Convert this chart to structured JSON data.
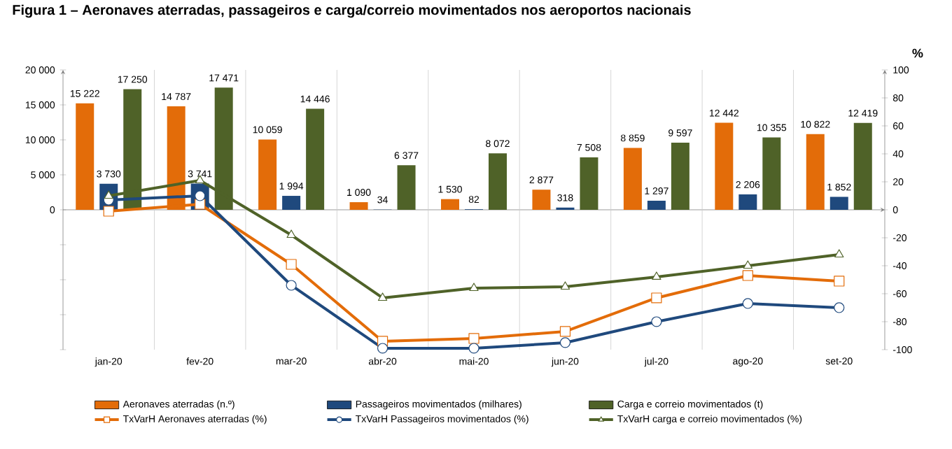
{
  "chart_data": {
    "type": "bar",
    "title": "Figura 1 – Aeronaves aterradas, passageiros e carga/correio movimentados nos aeroportos nacionais",
    "y2label": "%",
    "categories": [
      "jan-20",
      "fev-20",
      "mar-20",
      "abr-20",
      "mai-20",
      "jun-20",
      "jul-20",
      "ago-20",
      "set-20"
    ],
    "series": [
      {
        "name": "Aeronaves aterradas (n.º)",
        "color": "#e36c09",
        "data_labels": true,
        "values": [
          15222,
          14787,
          10059,
          1090,
          1530,
          2877,
          8859,
          12442,
          10822
        ]
      },
      {
        "name": "Passageiros movimentados (milhares)",
        "color": "#1f497d",
        "data_labels": true,
        "values": [
          3730,
          3741,
          1994,
          34,
          82,
          318,
          1297,
          2206,
          1852
        ]
      },
      {
        "name": "Carga e correio movimentados (t)",
        "color": "#4f6228",
        "data_labels": true,
        "values": [
          17250,
          17471,
          14446,
          6377,
          8072,
          7508,
          9597,
          10355,
          12419
        ]
      },
      {
        "name": "TxVarH  Aeronaves aterradas (%)",
        "type": "line",
        "axis": "y2",
        "marker": "square",
        "color": "#e36c09",
        "values": [
          -1,
          4,
          -39,
          -94,
          -92,
          -87,
          -63,
          -47,
          -51
        ]
      },
      {
        "name": "TxVarH  Passageiros movimentados (%)",
        "type": "line",
        "axis": "y2",
        "marker": "circle",
        "color": "#1f497d",
        "values": [
          7,
          10,
          -54,
          -99,
          -99,
          -95,
          -80,
          -67,
          -70
        ]
      },
      {
        "name": "TxVarH  carga e correio movimentados (%)",
        "type": "line",
        "axis": "y2",
        "marker": "triangle",
        "color": "#4f6228",
        "values": [
          10,
          21,
          -18,
          -63,
          -56,
          -55,
          -48,
          -40,
          -32
        ]
      }
    ],
    "ylim": [
      -20000,
      20000
    ],
    "yticks": [
      {
        "value": -20000,
        "label": null
      },
      {
        "value": -15000,
        "label": null
      },
      {
        "value": -10000,
        "label": null
      },
      {
        "value": -5000,
        "label": null
      },
      0,
      {
        "value": 5000,
        "label": "5 000"
      },
      {
        "value": 10000,
        "label": "10 000"
      },
      {
        "value": 15000,
        "label": "15 000"
      },
      {
        "value": 20000,
        "label": "20 000"
      }
    ],
    "y2lim": [
      -100,
      100
    ],
    "y2ticks": [
      -100,
      -80,
      -60,
      -40,
      -20,
      0,
      20,
      40,
      60,
      80,
      100
    ],
    "grid": "x",
    "legend": "bottom"
  }
}
